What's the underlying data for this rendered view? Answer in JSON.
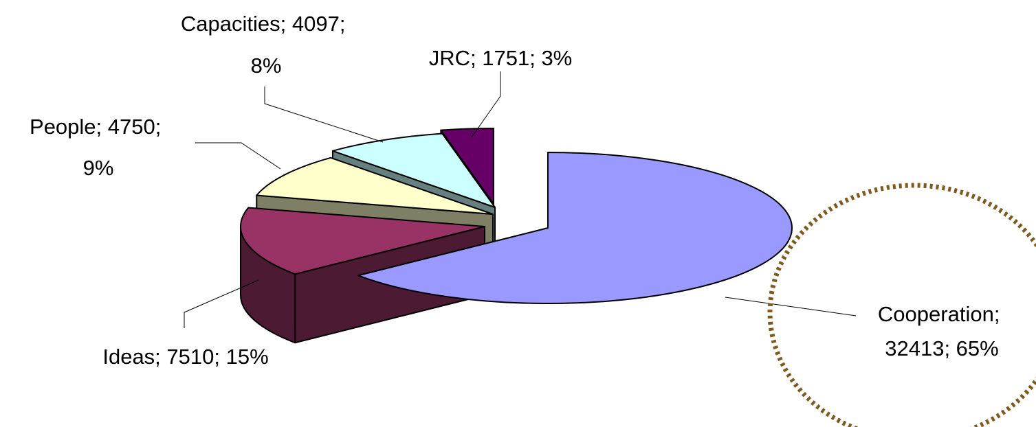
{
  "chart_data": {
    "type": "pie",
    "style": "3d-exploded",
    "categories": [
      "Cooperation",
      "Ideas",
      "People",
      "Capacities",
      "JRC"
    ],
    "values": [
      32413,
      7510,
      4750,
      4097,
      1751
    ],
    "percent_labels": [
      "65%",
      "15%",
      "9%",
      "8%",
      "3%"
    ],
    "labels": [
      {
        "line1": "Cooperation;",
        "line2": "32413; 65%"
      },
      {
        "line1": "Ideas; 7510; 15%",
        "line2": ""
      },
      {
        "line1": "People; 4750;",
        "line2": "9%"
      },
      {
        "line1": "Capacities; 4097;",
        "line2": "8%"
      },
      {
        "line1": "JRC; 1751; 3%",
        "line2": ""
      }
    ],
    "colors": {
      "Cooperation": {
        "top": "#9999ff",
        "side": "#4b4b7f"
      },
      "Ideas": {
        "top": "#993366",
        "side": "#4c1a33"
      },
      "People": {
        "top": "#ffffcc",
        "side": "#7f7f66"
      },
      "Capacities": {
        "top": "#ccffff",
        "side": "#667f7f"
      },
      "JRC": {
        "top": "#660066",
        "side": "#330033"
      }
    },
    "highlight": {
      "target": "Cooperation",
      "shape": "dotted-ellipse",
      "color": "#7f5a1f"
    },
    "legend": "none"
  }
}
